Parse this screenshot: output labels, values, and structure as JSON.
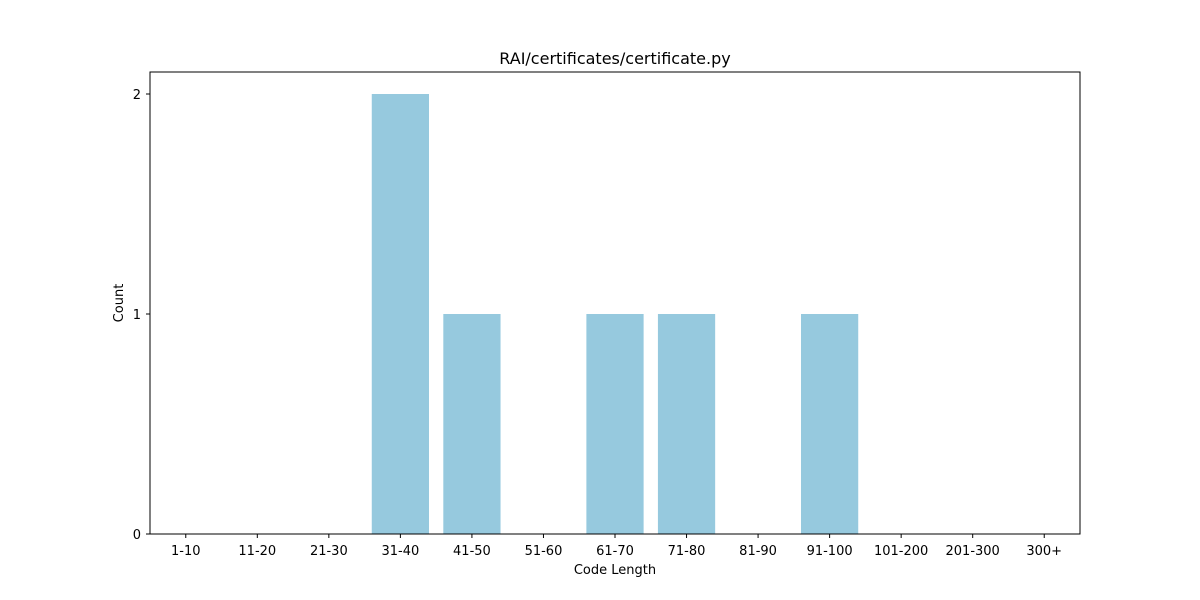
{
  "chart_data": {
    "type": "bar",
    "title": "RAI/certificates/certificate.py",
    "xlabel": "Code Length",
    "ylabel": "Count",
    "categories": [
      "1-10",
      "11-20",
      "21-30",
      "31-40",
      "41-50",
      "51-60",
      "61-70",
      "71-80",
      "81-90",
      "91-100",
      "101-200",
      "201-300",
      "300+"
    ],
    "values": [
      0,
      0,
      0,
      2,
      1,
      0,
      1,
      1,
      0,
      1,
      0,
      0,
      0
    ],
    "ylim": [
      0,
      2.1
    ],
    "yticks": [
      0,
      1,
      2
    ],
    "bar_color": "#96c9de",
    "grid": false
  }
}
